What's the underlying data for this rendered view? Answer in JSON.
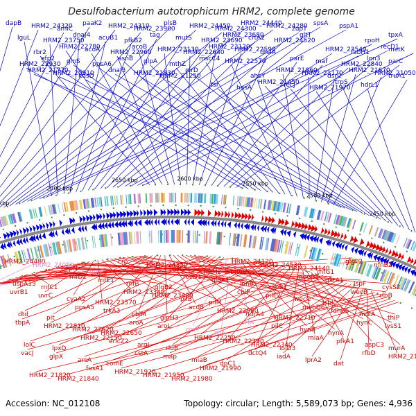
{
  "title": "Desulfobacterium autotrophicum HRM2, complete genome",
  "footer": {
    "accession": "Accession: NC_012108",
    "summary": "Topology: circular; Length: 5,589,073 bp; Genes: 4,936"
  },
  "kbp_labels": [
    "2400 kbp",
    "2450 kbp",
    "2500 kbp",
    "2550 kbp",
    "2600 kbp",
    "2650 kbp",
    "2700 kbp",
    "2750 kbp",
    "2800 kbp"
  ],
  "colors": {
    "forward": "#0000dd",
    "reverse": "#e00000",
    "rna": "#f090d0",
    "backbone": "#888888"
  },
  "forward_genes": [
    "dapB",
    "HRM2_24320",
    "amiC",
    "paaK2",
    "HRM2_24310",
    "HRM2_23900",
    "plsB",
    "HRM2_24450",
    "HRM2_24300",
    "HRM2_24440",
    "HRM2_24280",
    "zupT",
    "spsA",
    "pspA1",
    "rpoH",
    "tpxA",
    "lguL",
    "HRM2_23750",
    "dnaJ4",
    "acuB1",
    "pfkB2",
    "tag",
    "mutS",
    "HRM2_23690",
    "HRM2_23680",
    "crtA2",
    "HRM2_24520",
    "gltT",
    "HRM2_23540",
    "fabH1",
    "recD1",
    "metK",
    "rbr2",
    "HRM2_22780",
    "acoA",
    "HRM2_22960",
    "acoB",
    "HRM2_23130",
    "HRM2_22640",
    "HRM2_23120",
    "HRM2_22590",
    "dhaA",
    "parE",
    "maf",
    "HRM2_22840",
    "lon3",
    "parC",
    "HRM2_22930",
    "efp2",
    "glnS",
    "ppsA6",
    "asnB",
    "glpA",
    "mthZ",
    "mscC4",
    "HRM2_22570",
    "ahcY",
    "HRM2_21860",
    "HRM2_21170",
    "dsrC",
    "HRM2_21670",
    "HRM2_21050",
    "truA1",
    "HRM2_21770",
    "HRM2_20910",
    "kdsD",
    "dnaJ3",
    "HRM2_21830",
    "HRM2_21250",
    "nirD",
    "fsr",
    "hasA",
    "HRM2_21450",
    "recJ",
    "HRM2_21970",
    "trpS",
    "hdrL1"
  ],
  "reverse_genes": [
    "HRM2_24480",
    "HRM2_24050",
    "pepN",
    "putP",
    "crp",
    "HRM2_24350",
    "isf",
    "HRM2_24490",
    "HRM2_24120",
    "HRM2_24530",
    "HRM2_24140",
    "rnfG1",
    "glgP2",
    "nfnB2",
    "uspA13",
    "rnfC1",
    "rnfD1",
    "rnfE1",
    "rnfB",
    "glgB2",
    "rocD1",
    "glgA1",
    "lonB",
    "cspB1",
    "moeB1",
    "gatA1",
    "lspF",
    "cysS2",
    "uvrB1",
    "uvrC",
    "cyaA2",
    "HRM2_23570",
    "HRM2_23340",
    "HRM2_23420",
    "pilB",
    "pilM",
    "cbiP",
    "pilE2",
    "wecC",
    "lspL",
    "wecB",
    "rfbB",
    "dtd",
    "pit",
    "ppsA5",
    "trkA3",
    "cbiM",
    "glnH3",
    "acd8",
    "HRM2_22980",
    "hdrA4",
    "HRM2_22710",
    "mvhD6",
    "fdhB6",
    "mdlA",
    "thiP",
    "tbpA",
    "HRM2_22810",
    "HRM2_22620",
    "HRM2_22650",
    "aroA",
    "aroL",
    "rrsA",
    "rrlA",
    "rrfA",
    "pilC",
    "hynB",
    "hynA",
    "hynC",
    "lysS1",
    "lolC",
    "lpxD",
    "HRM2_22150",
    "ericZ2",
    "argJ",
    "rluB",
    "HRM2_22250",
    "HRM2_22290",
    "HRM2_22340",
    "lolD3",
    "miaA",
    "pfkA1",
    "aspC3",
    "murA",
    "vacJ",
    "glpX",
    "arsA",
    "comE",
    "cstA",
    "map",
    "miaB",
    "dpC1",
    "dctQ4",
    "iadA",
    "lprA2",
    "dat",
    "rfbD",
    "HRM2_21810",
    "HRM2_21820",
    "HRM2_21840",
    "fusA1",
    "HRM2_21920",
    "HRM2_21950",
    "HRM2_21980",
    "HRM2_21990"
  ]
}
